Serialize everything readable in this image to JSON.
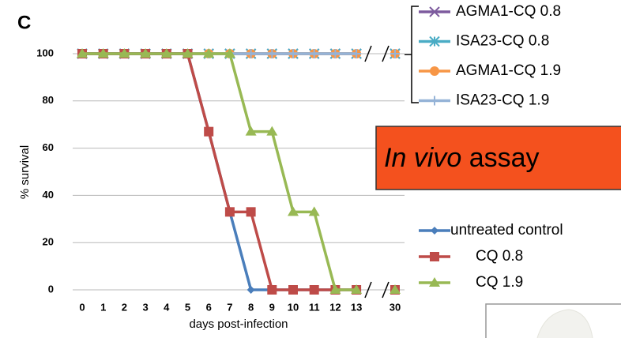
{
  "panel_label": "C",
  "chart_data": {
    "type": "line",
    "xlabel": "days post-infection",
    "ylabel": "% survival",
    "annotation": {
      "italic": "In vivo",
      "text": "assay"
    },
    "categories": [
      "0",
      "1",
      "2",
      "3",
      "4",
      "5",
      "6",
      "7",
      "8",
      "9",
      "10",
      "11",
      "12",
      "13",
      "30"
    ],
    "ylim": [
      0,
      100
    ],
    "yticks": [
      0,
      20,
      40,
      60,
      80,
      100
    ],
    "grid": true,
    "series": [
      {
        "name": "AGMA1-CQ 0.8",
        "color": "#7d5b9e",
        "marker": "x",
        "legend": "top",
        "values": [
          100,
          100,
          100,
          100,
          100,
          100,
          100,
          100,
          100,
          100,
          100,
          100,
          100,
          100,
          100
        ]
      },
      {
        "name": "ISA23-CQ 0.8",
        "color": "#4aacc5",
        "marker": "star",
        "legend": "top",
        "values": [
          100,
          100,
          100,
          100,
          100,
          100,
          100,
          100,
          100,
          100,
          100,
          100,
          100,
          100,
          100
        ]
      },
      {
        "name": "AGMA1-CQ 1.9",
        "color": "#f79646",
        "marker": "circle",
        "legend": "top",
        "values": [
          100,
          100,
          100,
          100,
          100,
          100,
          100,
          100,
          100,
          100,
          100,
          100,
          100,
          100,
          100
        ]
      },
      {
        "name": "ISA23-CQ 1.9",
        "color": "#95b3d7",
        "marker": "plus",
        "legend": "top",
        "values": [
          100,
          100,
          100,
          100,
          100,
          100,
          100,
          100,
          100,
          100,
          100,
          100,
          100,
          100,
          100
        ]
      },
      {
        "name": "untreated control",
        "color": "#4a7ebb",
        "marker": "diamond",
        "legend": "bottom",
        "values": [
          100,
          100,
          100,
          100,
          100,
          100,
          67,
          33,
          0,
          0,
          0,
          0,
          0,
          0,
          0
        ]
      },
      {
        "name": "CQ 0.8",
        "color": "#be4b48",
        "marker": "square",
        "legend": "bottom",
        "values": [
          100,
          100,
          100,
          100,
          100,
          100,
          67,
          33,
          33,
          0,
          0,
          0,
          0,
          0,
          0
        ]
      },
      {
        "name": "CQ 1.9",
        "color": "#98b954",
        "marker": "triangle",
        "legend": "bottom",
        "values": [
          100,
          100,
          100,
          100,
          100,
          100,
          100,
          100,
          67,
          67,
          33,
          33,
          0,
          0,
          0
        ]
      }
    ]
  }
}
